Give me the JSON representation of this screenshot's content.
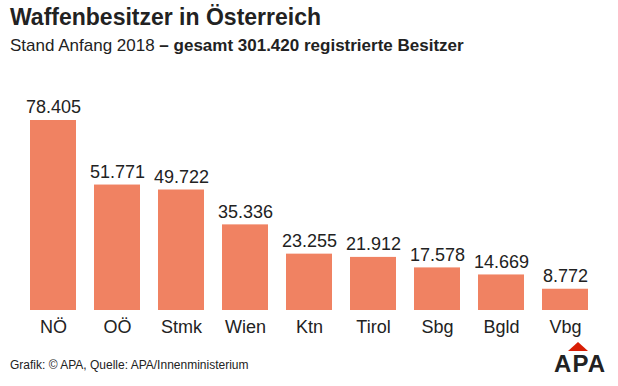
{
  "chart_data": {
    "type": "bar",
    "title": "Waffenbesitzer in Österreich",
    "subtitle": "Stand Anfang 2018 – gesamt 301.420 registrierte Besitzer",
    "caption": "Grafik: © APA, Quelle: APA/Innenministerium",
    "logo": "APA",
    "categories": [
      "NÖ",
      "OÖ",
      "Stmk",
      "Wien",
      "Ktn",
      "Tirol",
      "Sbg",
      "Bgld",
      "Vbg"
    ],
    "values": [
      78405,
      51771,
      49722,
      35336,
      23255,
      21912,
      17578,
      14669,
      8772
    ],
    "value_labels": [
      "78.405",
      "51.771",
      "49.722",
      "35.336",
      "23.255",
      "21.912",
      "17.578",
      "14.669",
      "8.772"
    ],
    "color": "#f08262",
    "ylim": [
      0,
      78405
    ],
    "data_labels": true,
    "tick_labels": "x",
    "grid": false
  }
}
